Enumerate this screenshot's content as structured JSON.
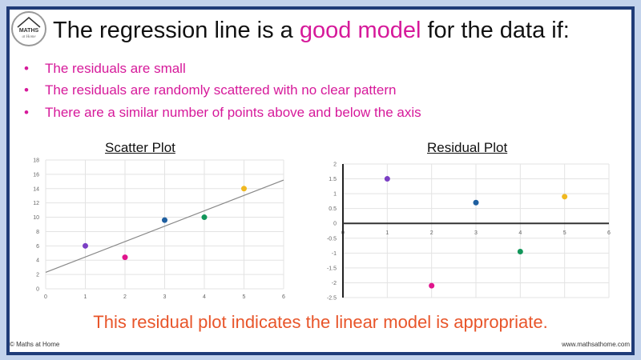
{
  "logo": {
    "text": "MATHS at Home"
  },
  "title": {
    "before": "The regression line is a ",
    "highlight": "good model",
    "after": " for the data if:"
  },
  "bullets": [
    "The residuals are small",
    "The residuals are randomly scattered with no clear pattern",
    "There are a similar number of points above and below the axis"
  ],
  "bullet_symbol": "•",
  "conclusion": "This residual plot indicates the linear model is appropriate.",
  "footer": {
    "left": "© Maths at Home",
    "right": "www.mathsathome.com"
  },
  "colors": {
    "accent": "#d6199a",
    "conclusion": "#e8552a",
    "frame": "#1f3c78"
  },
  "chart_data": [
    {
      "type": "scatter",
      "title": "Scatter Plot",
      "xlim": [
        0,
        6
      ],
      "ylim": [
        0,
        18
      ],
      "xticks": [
        0,
        1,
        2,
        3,
        4,
        5,
        6
      ],
      "yticks": [
        0,
        2,
        4,
        6,
        8,
        10,
        12,
        14,
        16,
        18
      ],
      "grid": true,
      "points": [
        {
          "x": 1,
          "y": 6,
          "color": "#7b3fc4"
        },
        {
          "x": 2,
          "y": 4.4,
          "color": "#e0148c"
        },
        {
          "x": 3,
          "y": 9.6,
          "color": "#1f5fa0"
        },
        {
          "x": 4,
          "y": 10,
          "color": "#12965a"
        },
        {
          "x": 5,
          "y": 14,
          "color": "#f0b820"
        }
      ],
      "regression_line": {
        "x": [
          0,
          6
        ],
        "y": [
          2.3,
          15.2
        ],
        "color": "#888888"
      }
    },
    {
      "type": "scatter",
      "title": "Residual Plot",
      "xlim": [
        0,
        6
      ],
      "ylim": [
        -2.5,
        2
      ],
      "xticks": [
        0,
        1,
        2,
        3,
        4,
        5,
        6
      ],
      "yticks": [
        2,
        1.5,
        1,
        0.5,
        0,
        -0.5,
        -1,
        -1.5,
        -2,
        -2.5
      ],
      "grid": true,
      "points": [
        {
          "x": 1,
          "y": 1.5,
          "color": "#7b3fc4"
        },
        {
          "x": 2,
          "y": -2.1,
          "color": "#e0148c"
        },
        {
          "x": 3,
          "y": 0.7,
          "color": "#1f5fa0"
        },
        {
          "x": 4,
          "y": -0.95,
          "color": "#12965a"
        },
        {
          "x": 5,
          "y": 0.9,
          "color": "#f0b820"
        }
      ]
    }
  ]
}
